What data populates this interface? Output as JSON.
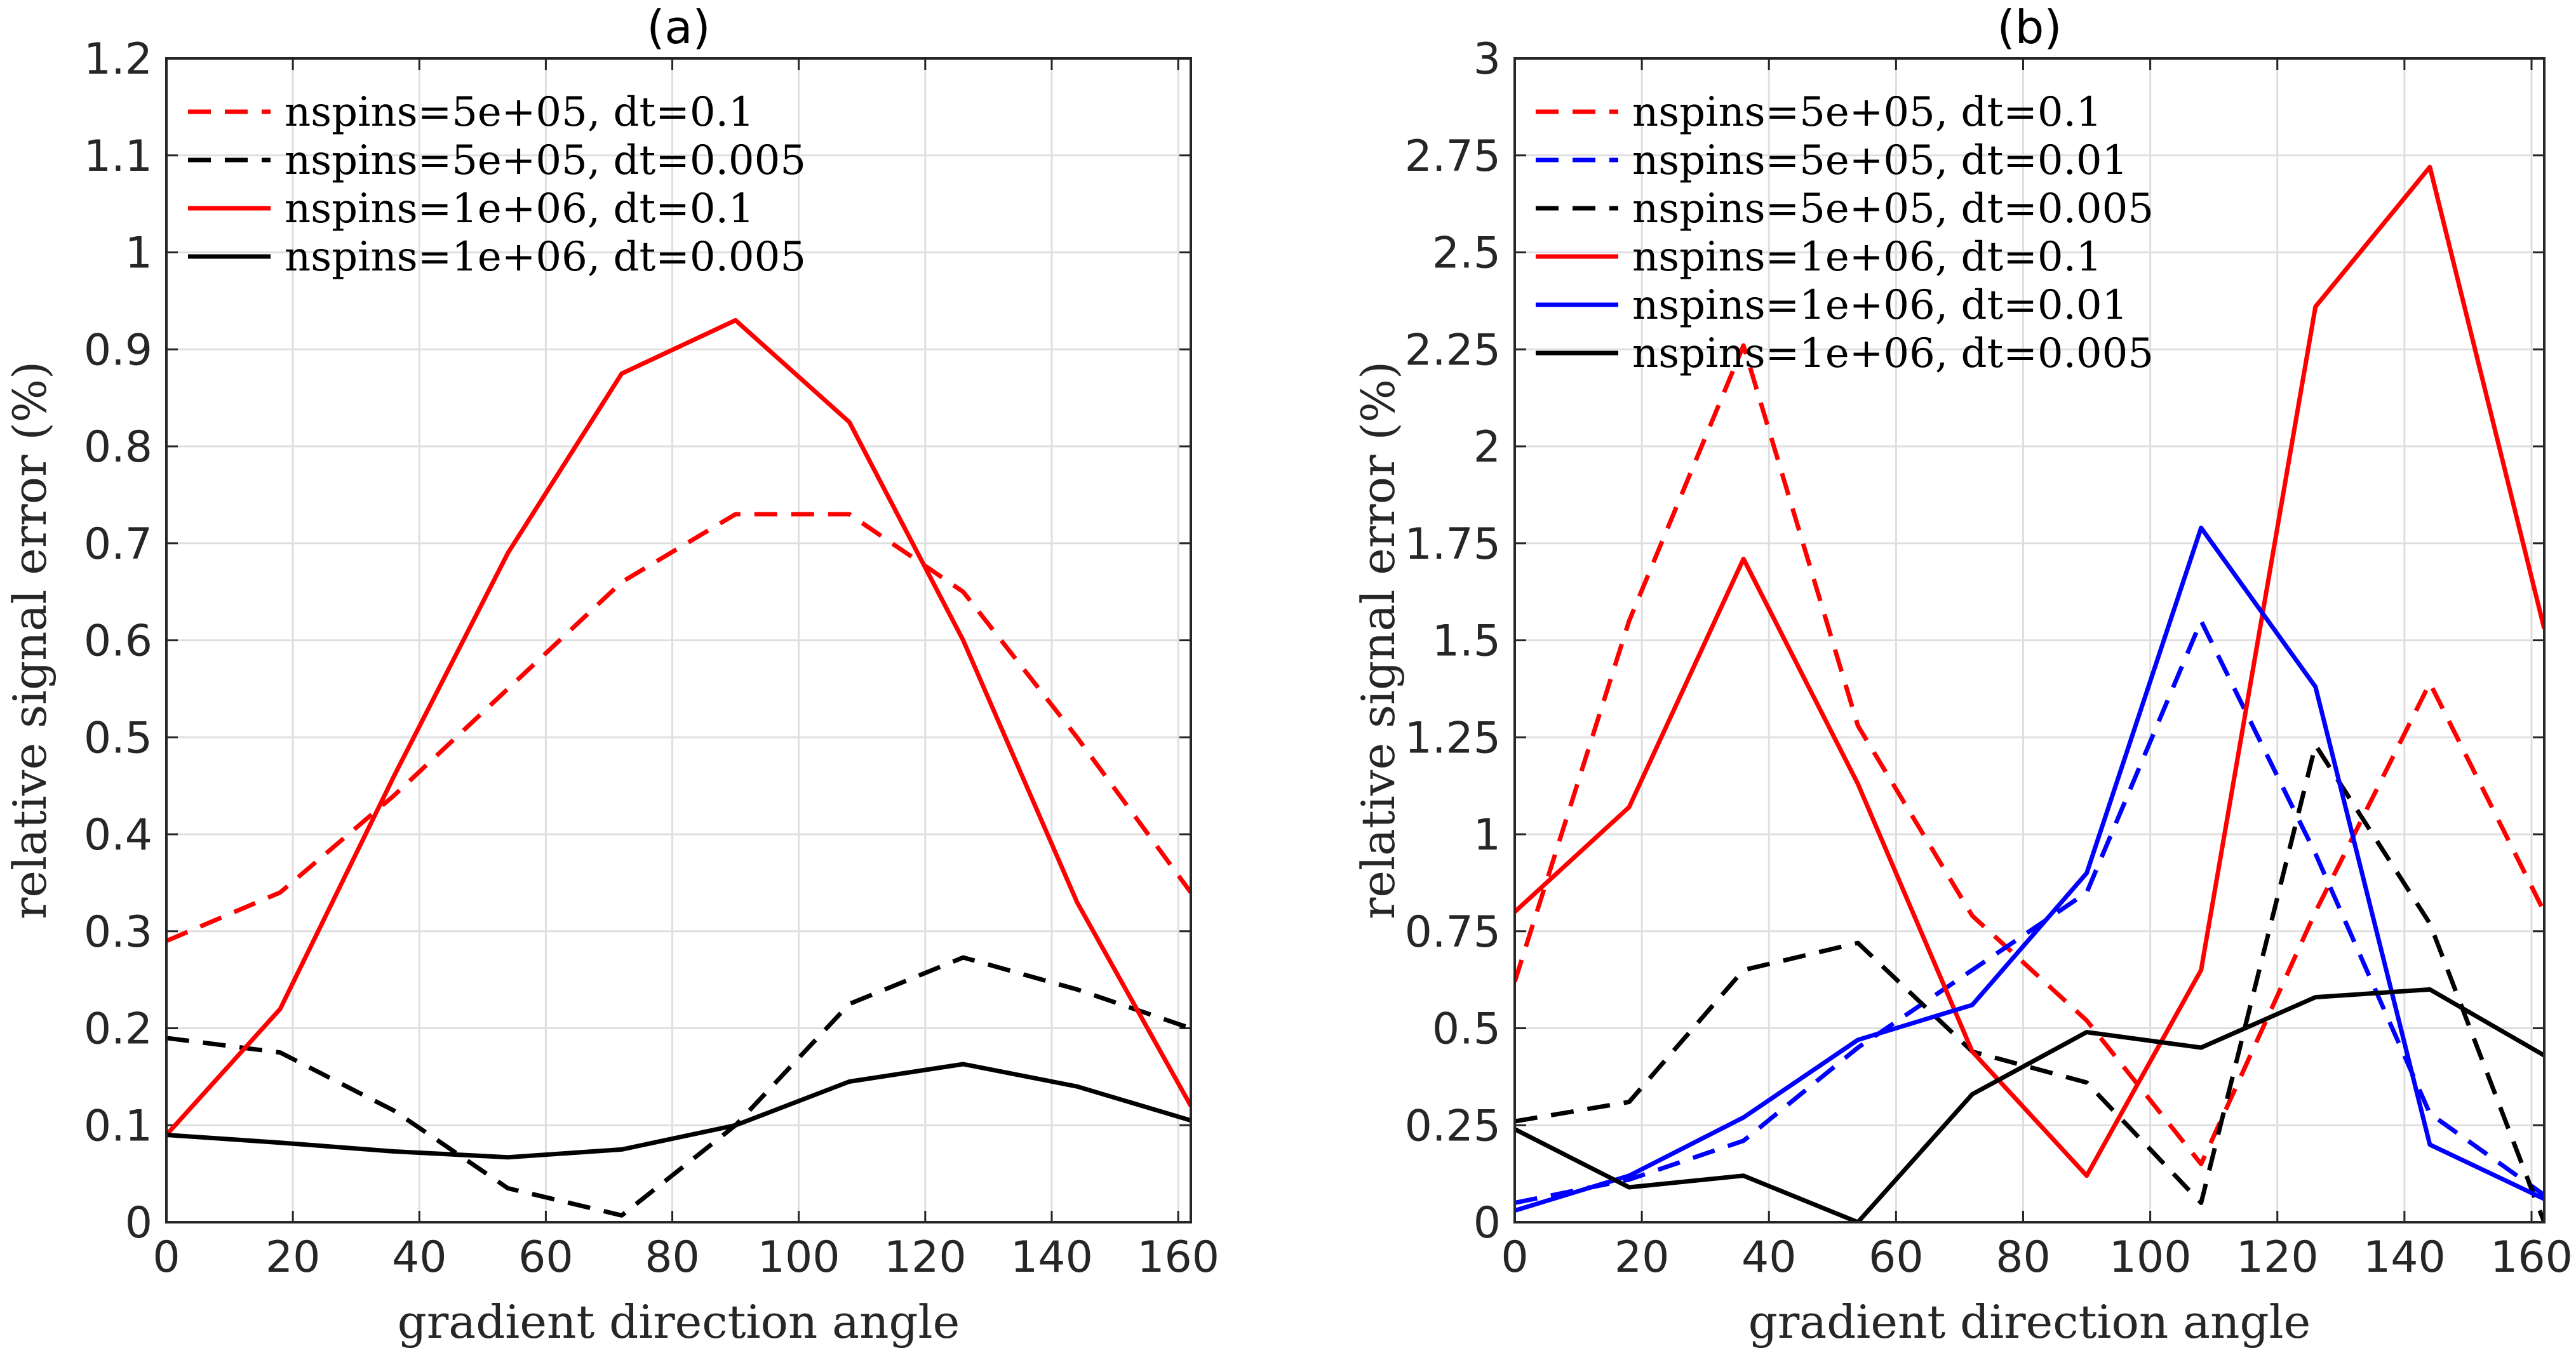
{
  "chart_data": [
    {
      "type": "line",
      "title": "(a)",
      "xlabel": "gradient direction angle",
      "ylabel": "relative signal error (%)",
      "xlim": [
        0,
        162
      ],
      "ylim": [
        0,
        1.2
      ],
      "xticks": [
        "0",
        "20",
        "40",
        "60",
        "80",
        "100",
        "120",
        "140",
        "160"
      ],
      "yticks": [
        "0",
        "0.1",
        "0.2",
        "0.3",
        "0.4",
        "0.5",
        "0.6",
        "0.7",
        "0.8",
        "0.9",
        "1",
        "1.1",
        "1.2"
      ],
      "grid": true,
      "legend_position": "top-left",
      "x": [
        0,
        18,
        36,
        54,
        72,
        90,
        108,
        126,
        144,
        162
      ],
      "series": [
        {
          "name": "nspins=5e+05, dt=0.1",
          "color": "#ff0000",
          "dash": "dashed",
          "values": [
            0.29,
            0.34,
            0.44,
            0.55,
            0.66,
            0.73,
            0.73,
            0.65,
            0.5,
            0.34
          ]
        },
        {
          "name": "nspins=5e+05, dt=0.005",
          "color": "#000000",
          "dash": "dashed",
          "values": [
            0.19,
            0.175,
            0.115,
            0.035,
            0.007,
            0.1,
            0.225,
            0.273,
            0.24,
            0.2
          ]
        },
        {
          "name": "nspins=1e+06, dt=0.1",
          "color": "#ff0000",
          "dash": "solid",
          "values": [
            0.09,
            0.22,
            0.46,
            0.69,
            0.875,
            0.93,
            0.825,
            0.6,
            0.33,
            0.12
          ]
        },
        {
          "name": "nspins=1e+06, dt=0.005",
          "color": "#000000",
          "dash": "solid",
          "values": [
            0.09,
            0.082,
            0.073,
            0.067,
            0.075,
            0.1,
            0.145,
            0.163,
            0.14,
            0.105
          ]
        }
      ]
    },
    {
      "type": "line",
      "title": "(b)",
      "xlabel": "gradient direction angle",
      "ylabel": "relative signal error (%)",
      "xlim": [
        0,
        162
      ],
      "ylim": [
        0,
        3
      ],
      "xticks": [
        "0",
        "20",
        "40",
        "60",
        "80",
        "100",
        "120",
        "140",
        "160"
      ],
      "yticks": [
        "0",
        "0.25",
        "0.5",
        "0.75",
        "1",
        "1.25",
        "1.5",
        "1.75",
        "2",
        "2.25",
        "2.5",
        "2.75",
        "3"
      ],
      "grid": true,
      "legend_position": "top-left",
      "x": [
        0,
        18,
        36,
        54,
        72,
        90,
        108,
        126,
        144,
        162
      ],
      "series": [
        {
          "name": "nspins=5e+05, dt=0.1",
          "color": "#ff0000",
          "dash": "dashed",
          "values": [
            0.62,
            1.55,
            2.26,
            1.28,
            0.79,
            0.52,
            0.15,
            0.8,
            1.39,
            0.8
          ]
        },
        {
          "name": "nspins=5e+05, dt=0.01",
          "color": "#0000ff",
          "dash": "dashed",
          "values": [
            0.05,
            0.11,
            0.21,
            0.45,
            0.65,
            0.85,
            1.55,
            0.95,
            0.28,
            0.07
          ]
        },
        {
          "name": "nspins=5e+05, dt=0.005",
          "color": "#000000",
          "dash": "dashed",
          "values": [
            0.26,
            0.31,
            0.65,
            0.72,
            0.44,
            0.36,
            0.05,
            1.23,
            0.77,
            0.0
          ]
        },
        {
          "name": "nspins=1e+06, dt=0.1",
          "color": "#ff0000",
          "dash": "solid",
          "values": [
            0.8,
            1.07,
            1.71,
            1.13,
            0.44,
            0.12,
            0.65,
            2.36,
            2.72,
            1.53
          ]
        },
        {
          "name": "nspins=1e+06, dt=0.01",
          "color": "#0000ff",
          "dash": "solid",
          "values": [
            0.03,
            0.12,
            0.27,
            0.47,
            0.56,
            0.9,
            1.79,
            1.38,
            0.2,
            0.06
          ]
        },
        {
          "name": "nspins=1e+06, dt=0.005",
          "color": "#000000",
          "dash": "solid",
          "values": [
            0.24,
            0.09,
            0.12,
            0.0,
            0.33,
            0.49,
            0.45,
            0.58,
            0.6,
            0.43
          ]
        }
      ]
    }
  ]
}
